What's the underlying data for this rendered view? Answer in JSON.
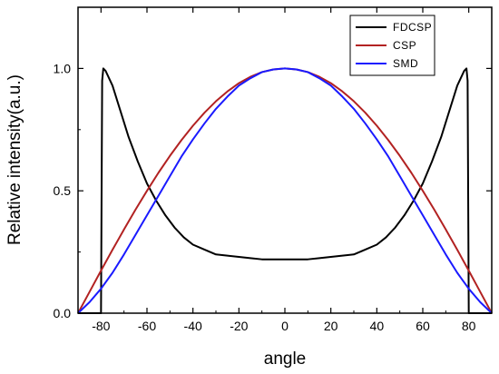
{
  "chart_data": {
    "type": "line",
    "title": "",
    "xlabel": "angle",
    "ylabel": "Relative intensity(a.u.)",
    "xlim": [
      -90,
      90
    ],
    "ylim": [
      0,
      1.25
    ],
    "xticks": [
      -80,
      -60,
      -40,
      -20,
      0,
      20,
      40,
      60,
      80
    ],
    "xtick_labels": [
      "-80",
      "-60",
      "-40",
      "-20",
      "0",
      "20",
      "40",
      "60",
      "80"
    ],
    "yticks": [
      0.0,
      0.5,
      1.0
    ],
    "ytick_labels": [
      "0.0",
      "0.5",
      "1.0"
    ],
    "grid": false,
    "legend_position": "top-right",
    "series": [
      {
        "name": "FDCSP",
        "color": "#000000",
        "x": [
          -90,
          -80,
          -79.5,
          -79,
          -78,
          -75,
          -72,
          -68,
          -64,
          -60,
          -56,
          -52,
          -48,
          -44,
          -40,
          -35,
          -30,
          -25,
          -20,
          -15,
          -10,
          -5,
          0,
          5,
          10,
          15,
          20,
          25,
          30,
          35,
          40,
          44,
          48,
          52,
          56,
          60,
          64,
          68,
          72,
          75,
          78,
          79,
          79.5,
          80,
          90
        ],
        "y": [
          0.0,
          0.0,
          0.95,
          1.0,
          0.99,
          0.93,
          0.84,
          0.72,
          0.62,
          0.53,
          0.46,
          0.4,
          0.35,
          0.31,
          0.28,
          0.26,
          0.24,
          0.235,
          0.23,
          0.225,
          0.22,
          0.22,
          0.22,
          0.22,
          0.22,
          0.225,
          0.23,
          0.235,
          0.24,
          0.26,
          0.28,
          0.31,
          0.35,
          0.4,
          0.46,
          0.53,
          0.62,
          0.72,
          0.84,
          0.93,
          0.99,
          1.0,
          0.95,
          0.0,
          0.0
        ]
      },
      {
        "name": "CSP",
        "color": "#b22222",
        "x": [
          -90,
          -85,
          -80,
          -75,
          -70,
          -65,
          -60,
          -55,
          -50,
          -45,
          -40,
          -35,
          -30,
          -25,
          -20,
          -15,
          -10,
          -5,
          0,
          5,
          10,
          15,
          20,
          25,
          30,
          35,
          40,
          45,
          50,
          55,
          60,
          65,
          70,
          75,
          80,
          85,
          90
        ],
        "y": [
          0.0,
          0.087,
          0.174,
          0.259,
          0.342,
          0.423,
          0.5,
          0.574,
          0.643,
          0.707,
          0.766,
          0.819,
          0.866,
          0.906,
          0.94,
          0.966,
          0.985,
          0.996,
          1.0,
          0.996,
          0.985,
          0.966,
          0.94,
          0.906,
          0.866,
          0.819,
          0.766,
          0.707,
          0.643,
          0.574,
          0.5,
          0.423,
          0.342,
          0.259,
          0.174,
          0.087,
          0.0
        ]
      },
      {
        "name": "SMD",
        "color": "#1a1aff",
        "x": [
          -90,
          -85,
          -80,
          -75,
          -70,
          -65,
          -60,
          -55,
          -50,
          -45,
          -40,
          -35,
          -30,
          -25,
          -20,
          -15,
          -10,
          -5,
          0,
          5,
          10,
          15,
          20,
          25,
          30,
          35,
          40,
          45,
          50,
          55,
          60,
          65,
          70,
          75,
          80,
          85,
          90
        ],
        "y": [
          0.0,
          0.045,
          0.1,
          0.165,
          0.24,
          0.32,
          0.4,
          0.48,
          0.56,
          0.64,
          0.71,
          0.775,
          0.835,
          0.885,
          0.93,
          0.96,
          0.985,
          0.996,
          1.0,
          0.996,
          0.985,
          0.96,
          0.93,
          0.885,
          0.835,
          0.775,
          0.71,
          0.64,
          0.56,
          0.48,
          0.4,
          0.32,
          0.24,
          0.165,
          0.1,
          0.045,
          0.0
        ]
      }
    ]
  }
}
